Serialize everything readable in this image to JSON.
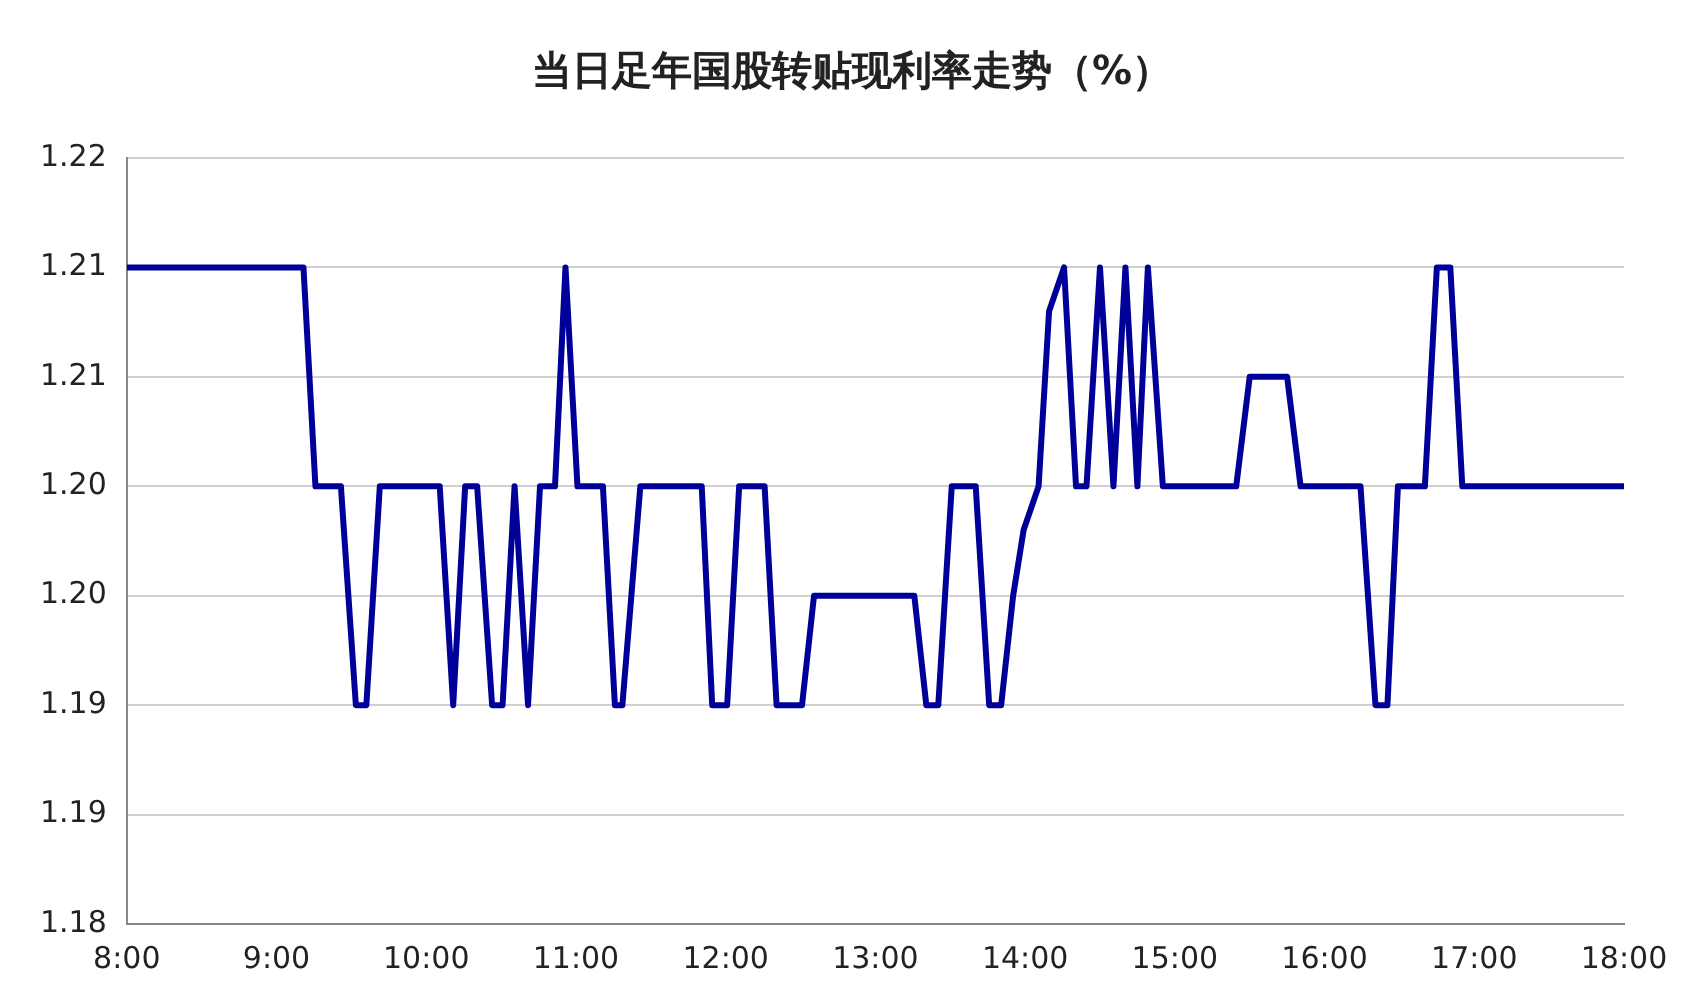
{
  "chart_data": {
    "type": "line",
    "title": "当日足年国股转贴现利率走势（%）",
    "x": [
      8.0,
      9.18,
      9.26,
      9.43,
      9.53,
      9.6,
      9.69,
      10.09,
      10.18,
      10.26,
      10.34,
      10.44,
      10.51,
      10.59,
      10.68,
      10.76,
      10.86,
      10.93,
      11.01,
      11.18,
      11.26,
      11.31,
      11.43,
      11.84,
      11.91,
      12.01,
      12.09,
      12.26,
      12.34,
      12.51,
      12.59,
      13.26,
      13.34,
      13.42,
      13.51,
      13.67,
      13.76,
      13.84,
      13.92,
      13.99,
      14.09,
      14.16,
      14.26,
      14.34,
      14.41,
      14.5,
      14.59,
      14.67,
      14.75,
      14.82,
      14.92,
      15.41,
      15.5,
      15.75,
      15.84,
      16.24,
      16.34,
      16.42,
      16.49,
      16.67,
      16.75,
      16.84,
      16.92,
      18.0
    ],
    "series": [
      {
        "color": "#000099",
        "values": [
          1.21,
          1.21,
          1.2,
          1.2,
          1.19,
          1.19,
          1.2,
          1.2,
          1.19,
          1.2,
          1.2,
          1.19,
          1.19,
          1.2,
          1.19,
          1.2,
          1.2,
          1.21,
          1.2,
          1.2,
          1.19,
          1.19,
          1.2,
          1.2,
          1.19,
          1.19,
          1.2,
          1.2,
          1.19,
          1.19,
          1.195,
          1.195,
          1.19,
          1.19,
          1.2,
          1.2,
          1.19,
          1.19,
          1.195,
          1.198,
          1.2,
          1.208,
          1.21,
          1.2,
          1.2,
          1.21,
          1.2,
          1.21,
          1.2,
          1.21,
          1.2,
          1.2,
          1.205,
          1.205,
          1.2,
          1.2,
          1.19,
          1.19,
          1.2,
          1.2,
          1.21,
          1.21,
          1.2,
          1.2
        ]
      }
    ],
    "xlim": [
      8,
      18
    ],
    "xticks": [
      {
        "value": 8,
        "label": "8:00"
      },
      {
        "value": 9,
        "label": "9:00"
      },
      {
        "value": 10,
        "label": "10:00"
      },
      {
        "value": 11,
        "label": "11:00"
      },
      {
        "value": 12,
        "label": "12:00"
      },
      {
        "value": 13,
        "label": "13:00"
      },
      {
        "value": 14,
        "label": "14:00"
      },
      {
        "value": 15,
        "label": "15:00"
      },
      {
        "value": 16,
        "label": "16:00"
      },
      {
        "value": 17,
        "label": "17:00"
      },
      {
        "value": 18,
        "label": "18:00"
      }
    ],
    "ylim": [
      1.18,
      1.215
    ],
    "yticks": [
      {
        "value": 1.18,
        "label": "1.18"
      },
      {
        "value": 1.185,
        "label": "1.19"
      },
      {
        "value": 1.19,
        "label": "1.19"
      },
      {
        "value": 1.195,
        "label": "1.20"
      },
      {
        "value": 1.2,
        "label": "1.20"
      },
      {
        "value": 1.205,
        "label": "1.21"
      },
      {
        "value": 1.21,
        "label": "1.21"
      },
      {
        "value": 1.215,
        "label": "1.22"
      }
    ],
    "grid": "y",
    "legend": false,
    "marker": "none",
    "line_style": "solid"
  }
}
